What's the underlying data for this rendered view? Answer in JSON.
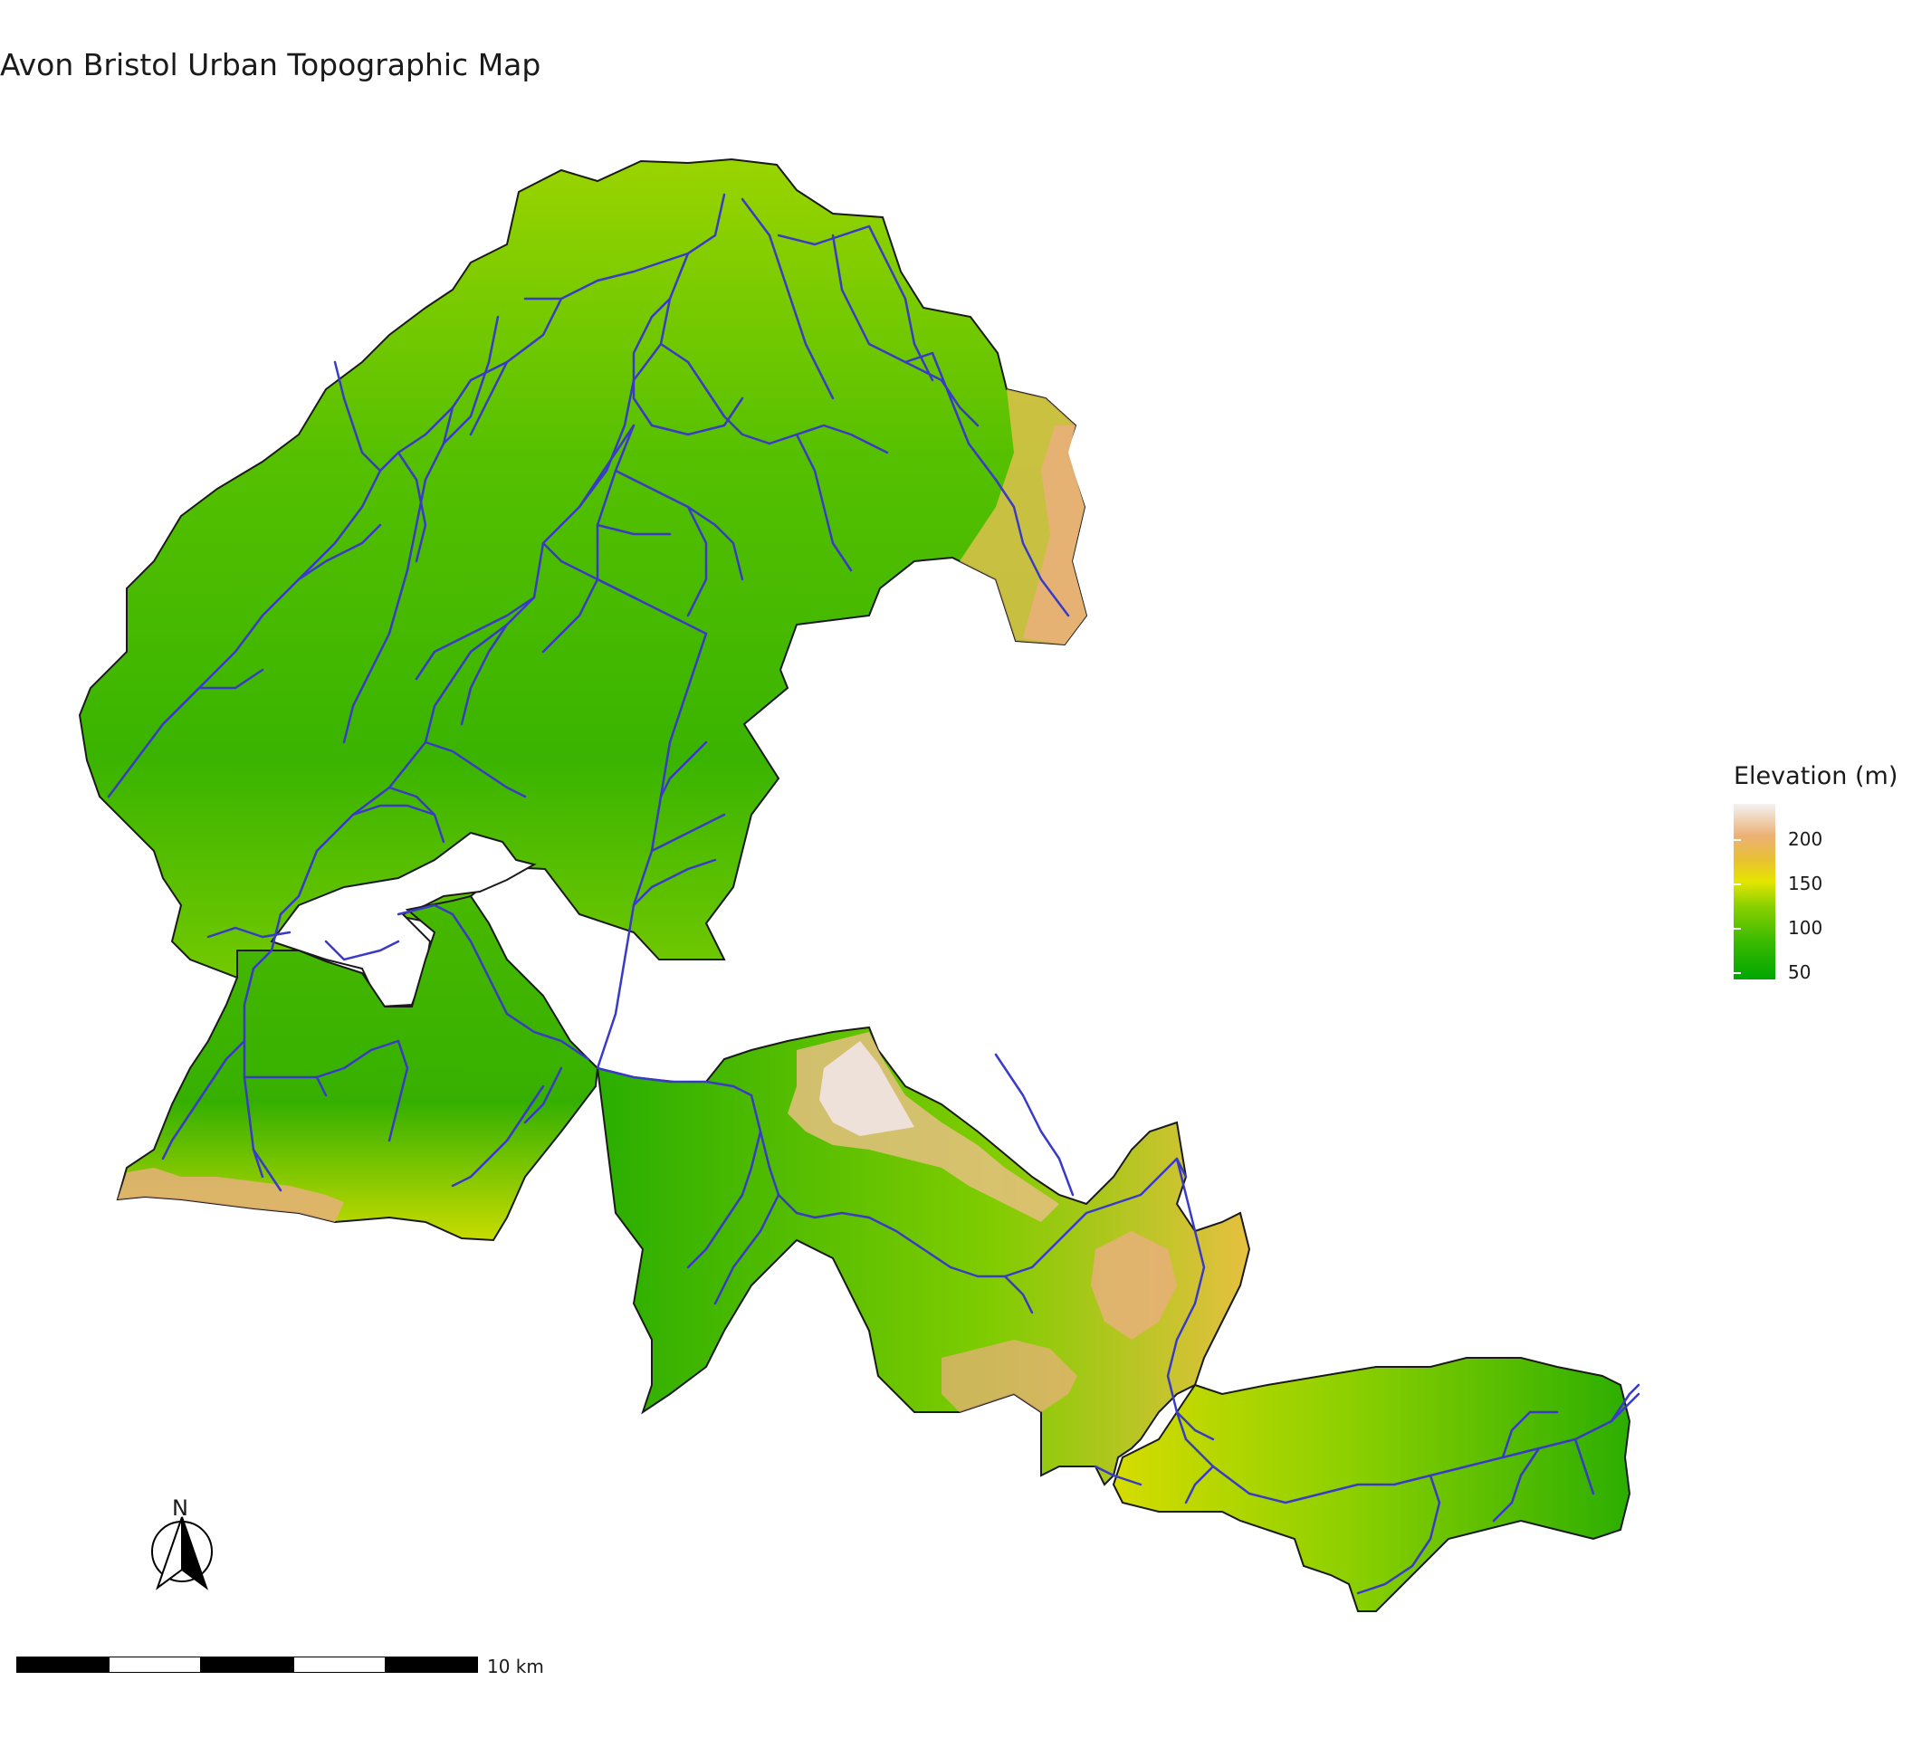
{
  "title": "Avon Bristol Urban Topographic Map",
  "legend": {
    "title": "Elevation (m)",
    "ticks": [
      "200",
      "150",
      "100",
      "50"
    ],
    "colors": [
      "#00a600",
      "#8bd000",
      "#e6e600",
      "#ecb176",
      "#f2f2f2"
    ]
  },
  "north_arrow": {
    "label": "N"
  },
  "scale_bar": {
    "label": "10 km",
    "segments": 5
  },
  "colors": {
    "river": "#3a3ac8",
    "boundary": "#1a1a1a",
    "low": "#22b000",
    "mid": "#7fcc00",
    "high": "#e0e000",
    "upland": "#e8b07a",
    "peak": "#f0e4e4"
  }
}
